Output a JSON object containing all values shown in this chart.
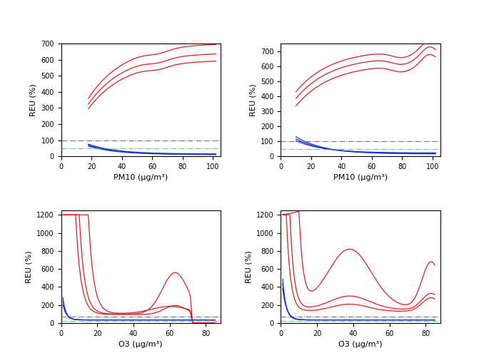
{
  "fig_width": 6.85,
  "fig_height": 5.09,
  "dpi": 100,
  "background_color": "#ffffff",
  "red_color": "#d42020",
  "blue_color": "#1a35cc",
  "hline_black_color": "#404040",
  "hline_green_color": "#40b840",
  "ylabel": "REU (%)",
  "subplots": [
    {
      "xlabel": "PM10 (μg/m³)",
      "xlim": [
        0,
        105
      ],
      "ylim": [
        0,
        700
      ],
      "yticks": [
        0,
        100,
        200,
        300,
        400,
        500,
        600,
        700
      ],
      "xticks": [
        0,
        20,
        40,
        60,
        80,
        100
      ],
      "hline_black": 100,
      "hline_green": 50
    },
    {
      "xlabel": "PM10 (μg/m³)",
      "xlim": [
        0,
        105
      ],
      "ylim": [
        0,
        750
      ],
      "yticks": [
        0,
        100,
        200,
        300,
        400,
        500,
        600,
        700
      ],
      "xticks": [
        0,
        20,
        40,
        60,
        80,
        100
      ],
      "hline_black": 100,
      "hline_green": 50
    },
    {
      "xlabel": "O3 (μg/m³)",
      "xlim": [
        0,
        88
      ],
      "ylim": [
        0,
        1250
      ],
      "yticks": [
        0,
        200,
        400,
        600,
        800,
        1000,
        1200
      ],
      "xticks": [
        0,
        20,
        40,
        60,
        80
      ],
      "hline_black": 75,
      "hline_green": 25
    },
    {
      "xlabel": "O3 (μg/m³)",
      "xlim": [
        0,
        88
      ],
      "ylim": [
        0,
        1250
      ],
      "yticks": [
        0,
        200,
        400,
        600,
        800,
        1000,
        1200
      ],
      "xticks": [
        0,
        20,
        40,
        60,
        80
      ],
      "hline_black": 75,
      "hline_green": 25
    }
  ]
}
